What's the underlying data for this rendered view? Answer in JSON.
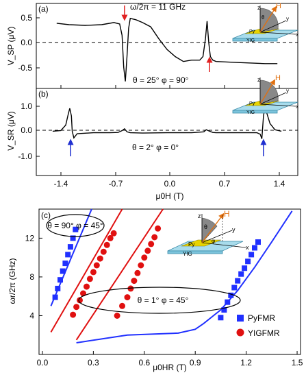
{
  "chart_data": [
    {
      "panel": "(a)",
      "type": "line",
      "ylabel": "V_SP (μV)",
      "xlim": [
        -1.6,
        1.6
      ],
      "ylim": [
        -0.65,
        0.55
      ],
      "yticks": [
        "0.5",
        "0.0",
        "-0.5"
      ],
      "ytick_values": [
        0.5,
        0.0,
        -0.5
      ],
      "annotations": [
        "ω/2π =  11 GHz",
        "θ = 25°   φ = 90°"
      ],
      "marker_arrows": {
        "color": "#e02020",
        "x": [
          -0.52,
          0.52
        ]
      },
      "series": [
        {
          "x": [
            -1.35,
            -1.2,
            -1.0,
            -0.8,
            -0.65,
            -0.58,
            -0.55,
            -0.53,
            -0.51,
            -0.49,
            -0.47,
            -0.45,
            -0.42,
            -0.38,
            -0.3,
            -0.2,
            -0.1,
            0.0,
            0.1,
            0.2,
            0.3,
            0.4,
            0.44,
            0.47,
            0.49,
            0.51,
            0.53,
            0.56,
            0.6,
            0.8,
            1.0,
            1.2,
            1.35
          ],
          "y": [
            0.27,
            0.25,
            0.24,
            0.25,
            0.28,
            0.26,
            0.1,
            -0.35,
            -0.55,
            -0.2,
            0.2,
            0.34,
            0.33,
            0.32,
            0.28,
            0.22,
            0.05,
            -0.1,
            -0.2,
            -0.27,
            -0.25,
            -0.25,
            -0.2,
            0.05,
            0.3,
            0.0,
            -0.2,
            -0.25,
            -0.27,
            -0.28,
            -0.29,
            -0.3,
            -0.3
          ]
        }
      ]
    },
    {
      "panel": "(b)",
      "type": "line",
      "ylabel": "V_SR (μV)",
      "xlabel": "μ0H (T)",
      "xlim": [
        -1.6,
        1.6
      ],
      "ylim": [
        -1.35,
        1.5
      ],
      "xticks": [
        "-1.4",
        "-0.7",
        "0.0",
        "0.7",
        "1.4"
      ],
      "xtick_values": [
        -1.4,
        -0.7,
        0.0,
        0.7,
        1.4
      ],
      "yticks": [
        "1.0",
        "0.0",
        "-1.0"
      ],
      "ytick_values": [
        1.0,
        0.0,
        -1.0
      ],
      "annotations": [
        "θ = 2°   φ = 0°"
      ],
      "marker_arrows": {
        "color": "#2030d0",
        "x": [
          -1.18,
          1.18
        ]
      },
      "series": [
        {
          "x": [
            -1.4,
            -1.3,
            -1.24,
            -1.21,
            -1.19,
            -1.17,
            -1.16,
            -1.14,
            -1.1,
            -0.9,
            -0.7,
            -0.6,
            -0.55,
            -0.52,
            -0.49,
            -0.45,
            -0.3,
            0.0,
            0.3,
            0.45,
            0.48,
            0.52,
            0.56,
            0.6,
            0.8,
            1.0,
            1.1,
            1.14,
            1.16,
            1.18,
            1.2,
            1.22,
            1.26,
            1.32,
            1.4
          ],
          "y": [
            0.1,
            0.12,
            0.3,
            0.65,
            0.85,
            0.6,
            0.1,
            -0.12,
            0.02,
            0.05,
            0.05,
            0.06,
            0.12,
            0.18,
            0.08,
            0.05,
            0.04,
            0.05,
            0.05,
            0.08,
            0.15,
            0.1,
            0.06,
            0.05,
            0.05,
            0.05,
            0.05,
            0.0,
            -0.15,
            0.6,
            0.9,
            0.7,
            0.35,
            0.15,
            0.1
          ]
        }
      ]
    },
    {
      "panel": "(c)",
      "type": "scatter",
      "xlabel": "μ0HR (T)",
      "ylabel": "ωr/2π (GHz)",
      "xlim": [
        -0.02,
        1.52
      ],
      "ylim": [
        0,
        15
      ],
      "xticks": [
        "0.0",
        "0.3",
        "0.6",
        "0.9",
        "1.2",
        "1.5"
      ],
      "xtick_values": [
        0.0,
        0.3,
        0.6,
        0.9,
        1.2,
        1.5
      ],
      "yticks": [
        "4",
        "8",
        "12"
      ],
      "ytick_values": [
        4,
        8,
        12
      ],
      "annotations": [
        "θ = 90°  φ = 45°",
        "θ = 1°  φ = 45°"
      ],
      "legend": {
        "placement": "bottom-right",
        "entries": [
          "PyFMR",
          "YIGFMR"
        ]
      },
      "series": [
        {
          "name": "PyFMR",
          "color": "#2030ff",
          "marker": "square",
          "x": [
            0.075,
            0.09,
            0.105,
            0.12,
            0.135,
            0.15,
            0.165,
            0.18,
            0.195,
            1.05,
            1.07,
            1.09,
            1.11,
            1.13,
            1.15,
            1.17,
            1.19,
            1.21,
            1.23,
            1.25,
            1.27
          ],
          "y": [
            5.9,
            6.8,
            7.7,
            8.6,
            9.4,
            10.3,
            11.1,
            12.0,
            12.9,
            3.8,
            4.6,
            5.4,
            6.1,
            6.9,
            7.6,
            8.3,
            8.9,
            9.6,
            10.3,
            11.0,
            11.6
          ]
        },
        {
          "name": "YIGFMR",
          "color": "#e01010",
          "marker": "circle",
          "x": [
            0.18,
            0.2,
            0.22,
            0.24,
            0.26,
            0.28,
            0.3,
            0.32,
            0.34,
            0.36,
            0.38,
            0.4,
            0.42,
            0.44,
            0.47,
            0.5,
            0.52,
            0.54,
            0.56,
            0.58,
            0.6,
            0.62,
            0.64,
            0.66,
            0.68
          ],
          "y": [
            4.1,
            4.9,
            5.6,
            6.3,
            7.0,
            7.8,
            8.5,
            9.2,
            9.9,
            10.6,
            11.3,
            12.0,
            12.5,
            4.0,
            5.0,
            5.9,
            6.8,
            7.6,
            8.4,
            9.2,
            10.0,
            10.7,
            11.4,
            12.1,
            13.0
          ]
        }
      ],
      "fit_lines": [
        {
          "color": "#2030ff",
          "x": [
            0.05,
            0.29
          ],
          "y": [
            5.0,
            15.0
          ]
        },
        {
          "color": "#e01010",
          "x": [
            0.05,
            0.47
          ],
          "y": [
            2.3,
            15.0
          ]
        },
        {
          "color": "#e01010",
          "x": [
            0.2,
            0.71
          ],
          "y": [
            1.5,
            15.0
          ]
        },
        {
          "color": "#2030ff",
          "x": [
            0.2,
            0.5,
            0.8,
            0.9,
            0.95,
            1.0,
            1.05,
            1.15,
            1.25,
            1.35,
            1.47
          ],
          "y": [
            1.2,
            2.0,
            2.2,
            2.6,
            3.2,
            3.9,
            4.6,
            6.6,
            9.0,
            11.6,
            14.8
          ]
        }
      ],
      "inset": {
        "labels": [
          "z",
          "H",
          "θ",
          "y",
          "φ",
          "x",
          "Py",
          "YIG"
        ]
      }
    }
  ],
  "insets": {
    "a": {
      "labels": [
        "z",
        "H",
        "θ",
        "y",
        "Py",
        "YIG",
        "x"
      ]
    },
    "b": {
      "labels": [
        "z",
        "H",
        "y",
        "Py",
        "YIG",
        "x"
      ]
    }
  }
}
